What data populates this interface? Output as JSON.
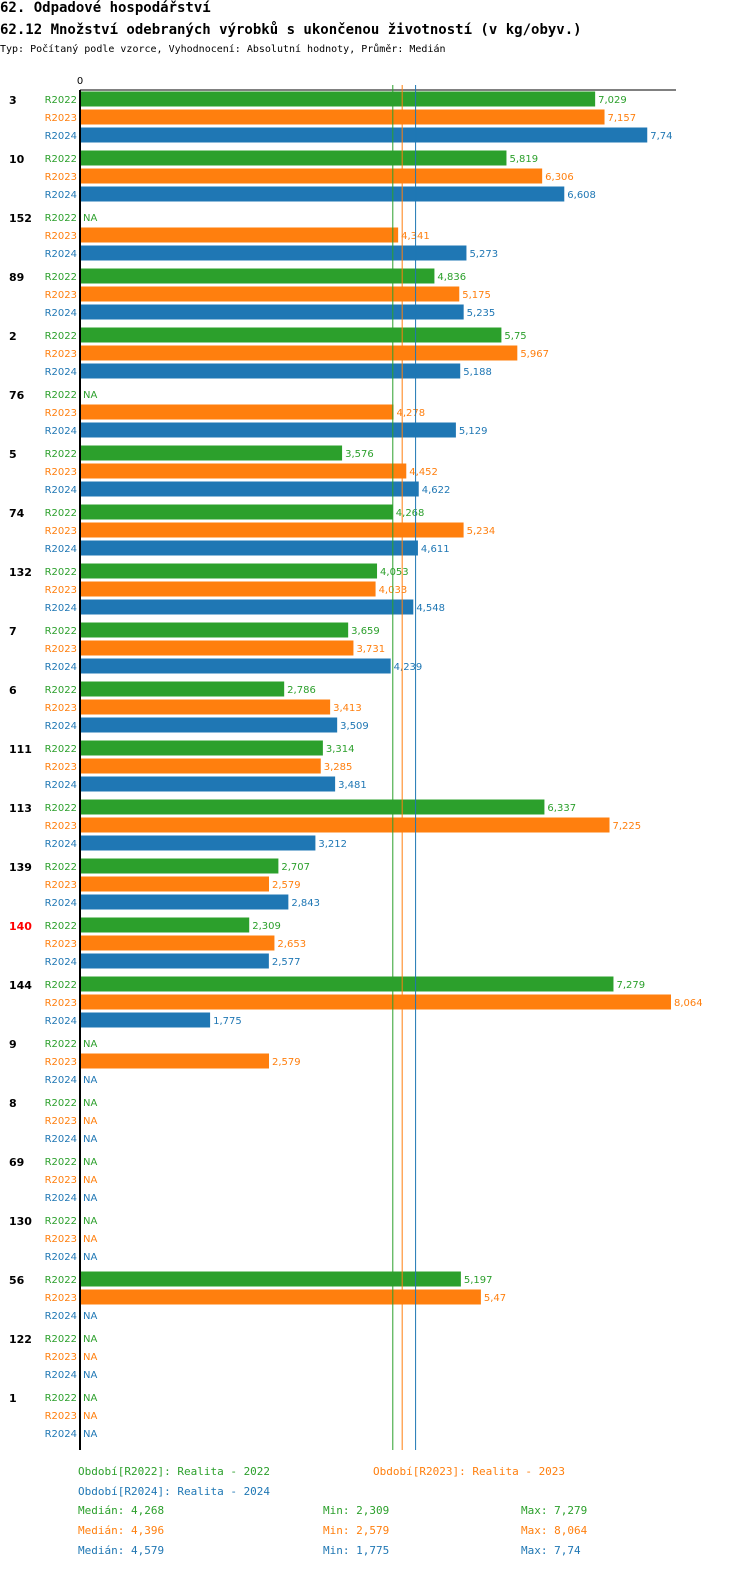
{
  "header": {
    "title": "62. Odpadové hospodářství",
    "subtitle": "62.12 Množství odebraných výrobků s ukončenou životností (v kg/obyv.)",
    "type_line": "Typ: Počítaný podle vzorce, Vyhodnocení: Absolutní hodnoty, Průměr: Medián"
  },
  "colors": {
    "R2022": "#2ca02c",
    "R2023": "#ff7f0e",
    "R2024": "#1f77b4",
    "highlight": "#ff0000",
    "text": "#000000"
  },
  "chart_data": {
    "type": "bar",
    "orientation": "horizontal",
    "axis_zero_label": "0",
    "xlim": [
      0,
      8.064
    ],
    "series_names": [
      "R2022",
      "R2023",
      "R2024"
    ],
    "na_label": "NA",
    "highlight_category": "140",
    "categories": [
      {
        "id": "3",
        "values": [
          7.029,
          7.157,
          7.74
        ],
        "labels": [
          "7,029",
          "7,157",
          "7,74"
        ]
      },
      {
        "id": "10",
        "values": [
          5.819,
          6.306,
          6.608
        ],
        "labels": [
          "5,819",
          "6,306",
          "6,608"
        ]
      },
      {
        "id": "152",
        "values": [
          null,
          4.341,
          5.273
        ],
        "labels": [
          "NA",
          "4,341",
          "5,273"
        ]
      },
      {
        "id": "89",
        "values": [
          4.836,
          5.175,
          5.235
        ],
        "labels": [
          "4,836",
          "5,175",
          "5,235"
        ]
      },
      {
        "id": "2",
        "values": [
          5.75,
          5.967,
          5.188
        ],
        "labels": [
          "5,75",
          "5,967",
          "5,188"
        ]
      },
      {
        "id": "76",
        "values": [
          null,
          4.278,
          5.129
        ],
        "labels": [
          "NA",
          "4,278",
          "5,129"
        ]
      },
      {
        "id": "5",
        "values": [
          3.576,
          4.452,
          4.622
        ],
        "labels": [
          "3,576",
          "4,452",
          "4,622"
        ]
      },
      {
        "id": "74",
        "values": [
          4.268,
          5.234,
          4.611
        ],
        "labels": [
          "4,268",
          "5,234",
          "4,611"
        ]
      },
      {
        "id": "132",
        "values": [
          4.053,
          4.033,
          4.548
        ],
        "labels": [
          "4,053",
          "4,033",
          "4,548"
        ]
      },
      {
        "id": "7",
        "values": [
          3.659,
          3.731,
          4.239
        ],
        "labels": [
          "3,659",
          "3,731",
          "4,239"
        ]
      },
      {
        "id": "6",
        "values": [
          2.786,
          3.413,
          3.509
        ],
        "labels": [
          "2,786",
          "3,413",
          "3,509"
        ]
      },
      {
        "id": "111",
        "values": [
          3.314,
          3.285,
          3.481
        ],
        "labels": [
          "3,314",
          "3,285",
          "3,481"
        ]
      },
      {
        "id": "113",
        "values": [
          6.337,
          7.225,
          3.212
        ],
        "labels": [
          "6,337",
          "7,225",
          "3,212"
        ]
      },
      {
        "id": "139",
        "values": [
          2.707,
          2.579,
          2.843
        ],
        "labels": [
          "2,707",
          "2,579",
          "2,843"
        ]
      },
      {
        "id": "140",
        "values": [
          2.309,
          2.653,
          2.577
        ],
        "labels": [
          "2,309",
          "2,653",
          "2,577"
        ]
      },
      {
        "id": "144",
        "values": [
          7.279,
          8.064,
          1.775
        ],
        "labels": [
          "7,279",
          "8,064",
          "1,775"
        ]
      },
      {
        "id": "9",
        "values": [
          null,
          2.579,
          null
        ],
        "labels": [
          "NA",
          "2,579",
          "NA"
        ]
      },
      {
        "id": "8",
        "values": [
          null,
          null,
          null
        ],
        "labels": [
          "NA",
          "NA",
          "NA"
        ]
      },
      {
        "id": "69",
        "values": [
          null,
          null,
          null
        ],
        "labels": [
          "NA",
          "NA",
          "NA"
        ]
      },
      {
        "id": "130",
        "values": [
          null,
          null,
          null
        ],
        "labels": [
          "NA",
          "NA",
          "NA"
        ]
      },
      {
        "id": "56",
        "values": [
          5.197,
          5.47,
          null
        ],
        "labels": [
          "5,197",
          "5,47",
          "NA"
        ]
      },
      {
        "id": "122",
        "values": [
          null,
          null,
          null
        ],
        "labels": [
          "NA",
          "NA",
          "NA"
        ]
      },
      {
        "id": "1",
        "values": [
          null,
          null,
          null
        ],
        "labels": [
          "NA",
          "NA",
          "NA"
        ]
      }
    ],
    "medians": [
      4.268,
      4.396,
      4.579
    ]
  },
  "legend": {
    "period_2022": "Období[R2022]: Realita - 2022",
    "period_2023": "Období[R2023]: Realita - 2023",
    "period_2024": "Období[R2024]: Realita - 2024",
    "stats": [
      {
        "median": "Medián: 4,268",
        "min": "Min: 2,309",
        "max": "Max: 7,279"
      },
      {
        "median": "Medián: 4,396",
        "min": "Min: 2,579",
        "max": "Max: 8,064"
      },
      {
        "median": "Medián: 4,579",
        "min": "Min: 1,775",
        "max": "Max: 7,74"
      }
    ]
  }
}
